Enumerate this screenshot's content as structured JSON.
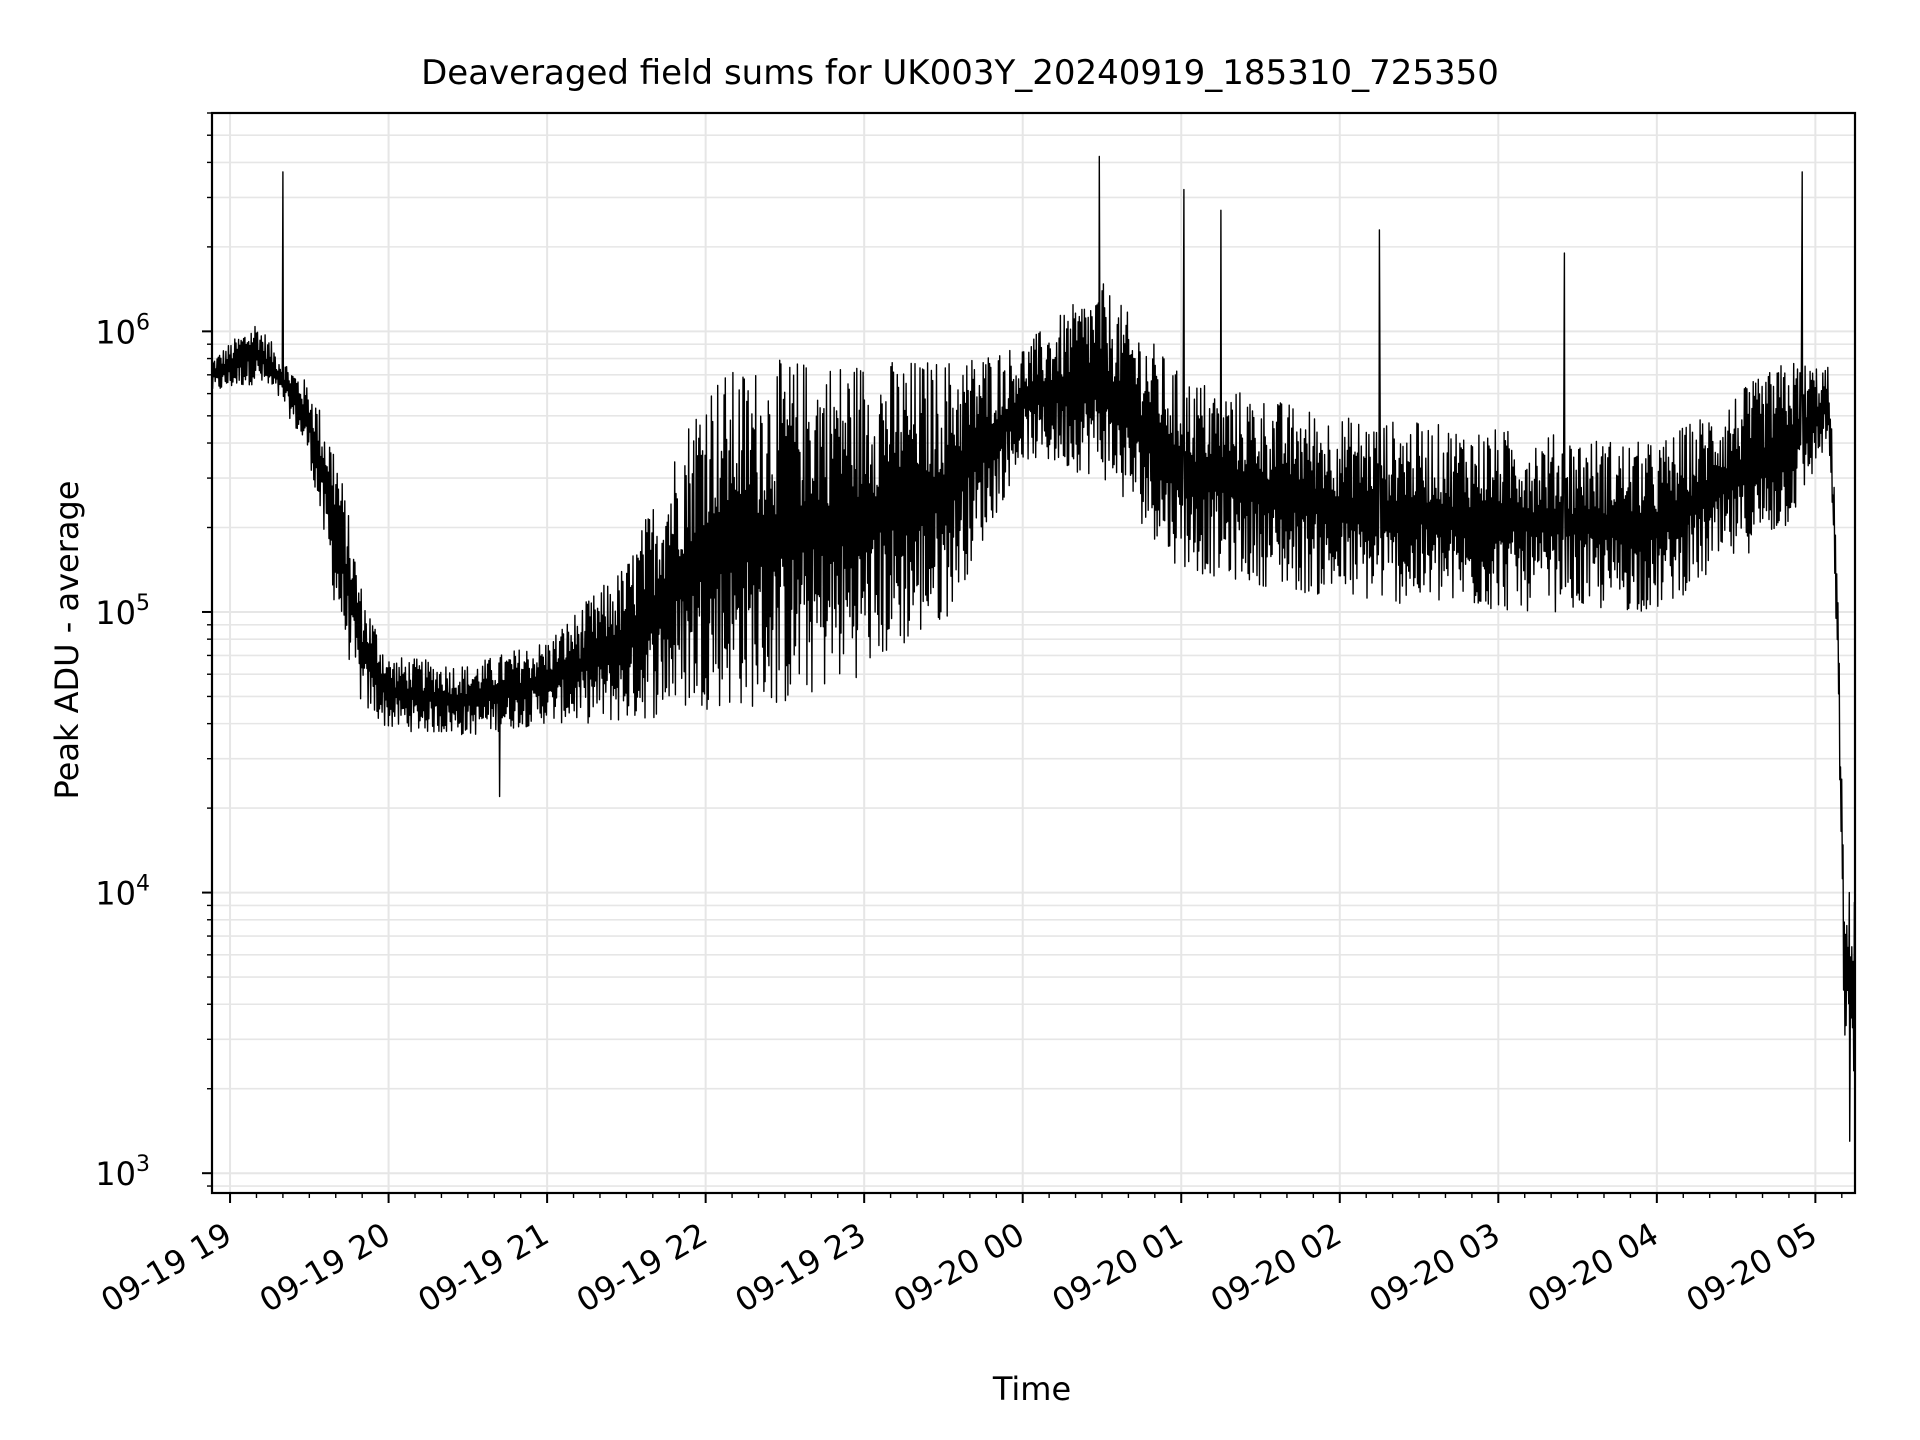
{
  "chart_data": {
    "type": "line",
    "title": "Deaveraged field sums for UK003Y_20240919_185310_725350",
    "xlabel": "Time",
    "ylabel": "Peak ADU - average",
    "yscale": "log",
    "ylim": [
      850,
      6000000
    ],
    "xlim": [
      "2024-09-19 18:53:10",
      "2024-09-20 05:15:00"
    ],
    "grid": true,
    "line_color": "#000000",
    "grid_color": "#e6e6e6",
    "x_ticks": [
      {
        "t": "2024-09-19 19:00",
        "label": "09-19 19"
      },
      {
        "t": "2024-09-19 20:00",
        "label": "09-19 20"
      },
      {
        "t": "2024-09-19 21:00",
        "label": "09-19 21"
      },
      {
        "t": "2024-09-19 22:00",
        "label": "09-19 22"
      },
      {
        "t": "2024-09-19 23:00",
        "label": "09-19 23"
      },
      {
        "t": "2024-09-20 00:00",
        "label": "09-20 00"
      },
      {
        "t": "2024-09-20 01:00",
        "label": "09-20 01"
      },
      {
        "t": "2024-09-20 02:00",
        "label": "09-20 02"
      },
      {
        "t": "2024-09-20 03:00",
        "label": "09-20 03"
      },
      {
        "t": "2024-09-20 04:00",
        "label": "09-20 04"
      },
      {
        "t": "2024-09-20 05:00",
        "label": "09-20 05"
      }
    ],
    "y_ticks": [
      {
        "v": 1000,
        "base": "10",
        "exp": "3"
      },
      {
        "v": 10000,
        "base": "10",
        "exp": "4"
      },
      {
        "v": 100000,
        "base": "10",
        "exp": "5"
      },
      {
        "v": 1000000,
        "base": "10",
        "exp": "6"
      }
    ],
    "series": [
      {
        "envelope_points": [
          {
            "t": "2024-09-19 18:53",
            "low": 600000,
            "high": 800000
          },
          {
            "t": "2024-09-19 19:10",
            "low": 650000,
            "high": 1100000
          },
          {
            "t": "2024-09-19 19:20",
            "low": 550000,
            "high": 800000
          },
          {
            "t": "2024-09-19 19:30",
            "low": 350000,
            "high": 650000
          },
          {
            "t": "2024-09-19 19:40",
            "low": 100000,
            "high": 400000
          },
          {
            "t": "2024-09-19 19:50",
            "low": 45000,
            "high": 120000
          },
          {
            "t": "2024-09-19 20:00",
            "low": 38000,
            "high": 70000
          },
          {
            "t": "2024-09-19 20:30",
            "low": 36000,
            "high": 65000
          },
          {
            "t": "2024-09-19 21:00",
            "low": 40000,
            "high": 80000
          },
          {
            "t": "2024-09-19 21:30",
            "low": 40000,
            "high": 150000
          },
          {
            "t": "2024-09-19 22:00",
            "low": 45000,
            "high": 700000
          },
          {
            "t": "2024-09-19 22:30",
            "low": 45000,
            "high": 800000
          },
          {
            "t": "2024-09-19 23:00",
            "low": 60000,
            "high": 800000
          },
          {
            "t": "2024-09-19 23:30",
            "low": 90000,
            "high": 800000
          },
          {
            "t": "2024-09-20 00:00",
            "low": 350000,
            "high": 900000
          },
          {
            "t": "2024-09-20 00:30",
            "low": 300000,
            "high": 1500000
          },
          {
            "t": "2024-09-20 01:00",
            "low": 140000,
            "high": 700000
          },
          {
            "t": "2024-09-20 02:00",
            "low": 110000,
            "high": 500000
          },
          {
            "t": "2024-09-20 03:00",
            "low": 100000,
            "high": 450000
          },
          {
            "t": "2024-09-20 04:00",
            "low": 100000,
            "high": 400000
          },
          {
            "t": "2024-09-20 04:50",
            "low": 200000,
            "high": 800000
          },
          {
            "t": "2024-09-20 05:05",
            "low": 400000,
            "high": 750000
          },
          {
            "t": "2024-09-20 05:08",
            "low": 80000,
            "high": 200000
          },
          {
            "t": "2024-09-20 05:11",
            "low": 3000,
            "high": 9000
          },
          {
            "t": "2024-09-20 05:15",
            "low": 2000,
            "high": 12000
          }
        ],
        "spikes": [
          {
            "t": "2024-09-19 19:20",
            "v": 3700000
          },
          {
            "t": "2024-09-20 00:29",
            "v": 4200000
          },
          {
            "t": "2024-09-20 01:01",
            "v": 3200000
          },
          {
            "t": "2024-09-20 01:15",
            "v": 2700000
          },
          {
            "t": "2024-09-20 02:15",
            "v": 2300000
          },
          {
            "t": "2024-09-20 03:25",
            "v": 1900000
          },
          {
            "t": "2024-09-20 04:55",
            "v": 3700000
          },
          {
            "t": "2024-09-19 20:42",
            "v": 22000
          },
          {
            "t": "2024-09-20 05:13",
            "v": 1300
          }
        ]
      }
    ]
  }
}
